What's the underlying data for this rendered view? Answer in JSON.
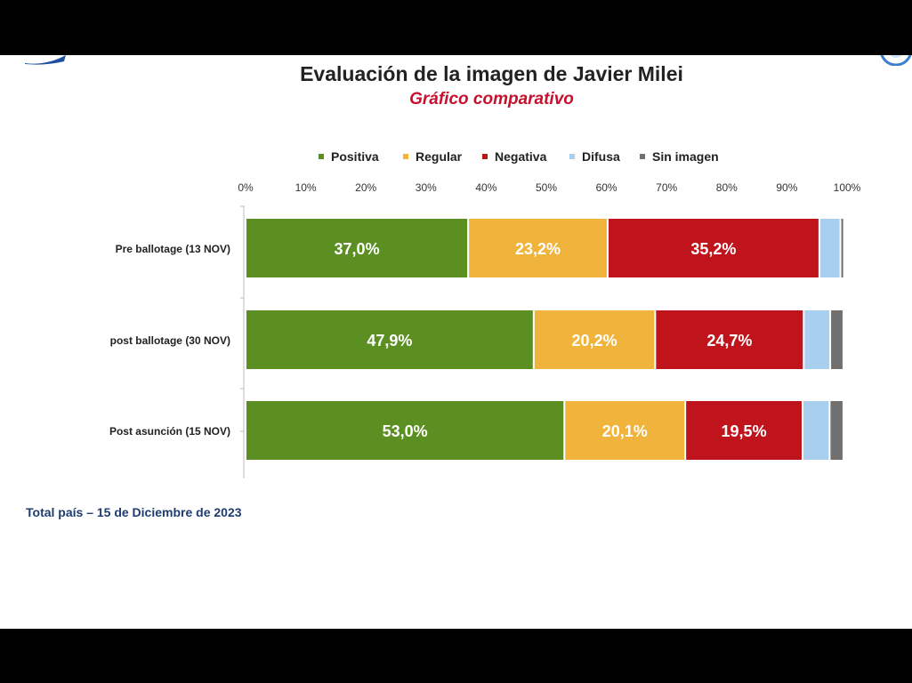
{
  "slide": {
    "title": "Evaluación de la imagen de Javier Milei",
    "subtitle": "Gráfico comparativo",
    "footer": "Total país – 15 de Diciembre de 2023"
  },
  "chart_data": {
    "type": "bar",
    "orientation": "horizontal",
    "stacked": true,
    "categories": [
      "Pre ballotage (13 NOV)",
      "post ballotage (30 NOV)",
      "Post asunción (15 NOV)"
    ],
    "series": [
      {
        "name": "Positiva",
        "color": "#5b8f22",
        "values": [
          37.0,
          47.9,
          53.0
        ],
        "labels": [
          "37,0%",
          "47,9%",
          "53,0%"
        ]
      },
      {
        "name": "Regular",
        "color": "#f0b43c",
        "values": [
          23.2,
          20.2,
          20.1
        ],
        "labels": [
          "23,2%",
          "20,2%",
          "20,1%"
        ]
      },
      {
        "name": "Negativa",
        "color": "#c0141c",
        "values": [
          35.2,
          24.7,
          19.5
        ],
        "labels": [
          "35,2%",
          "24,7%",
          "19,5%"
        ]
      },
      {
        "name": "Difusa",
        "color": "#a9cfee",
        "values": [
          3.5,
          4.4,
          4.5
        ],
        "labels": [
          "",
          "",
          ""
        ]
      },
      {
        "name": "Sin imagen",
        "color": "#707070",
        "values": [
          0.6,
          2.2,
          2.3
        ],
        "labels": [
          "",
          "",
          ""
        ]
      }
    ],
    "xlim": [
      0,
      100
    ],
    "xticks": [
      "0%",
      "10%",
      "20%",
      "30%",
      "40%",
      "50%",
      "60%",
      "70%",
      "80%",
      "90%",
      "100%"
    ],
    "legend": "top",
    "grid": false
  }
}
